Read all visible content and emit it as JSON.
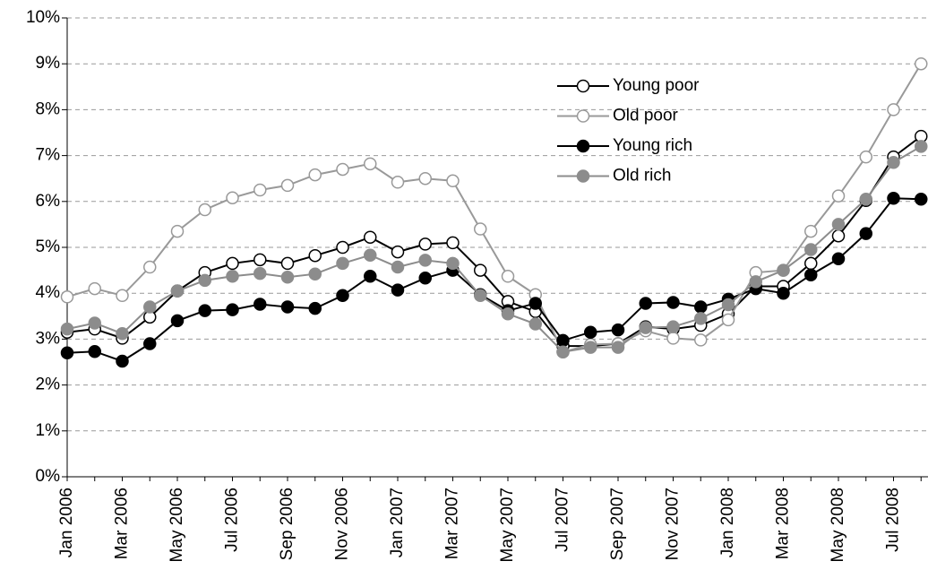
{
  "chart_data": {
    "type": "line",
    "categories": [
      "Jan 2006",
      null,
      "Mar 2006",
      null,
      "May 2006",
      null,
      "Jul 2006",
      null,
      "Sep 2006",
      null,
      "Nov 2006",
      null,
      "Jan 2007",
      null,
      "Mar 2007",
      null,
      "May 2007",
      null,
      "Jul 2007",
      null,
      "Sep 2007",
      null,
      "Nov 2007",
      null,
      "Jan 2008",
      null,
      "Mar 2008",
      null,
      "May 2008",
      null,
      "Jul 2008",
      null
    ],
    "series": [
      {
        "name": "Young poor",
        "color": "#000000",
        "marker_fill": "#ffffff",
        "values": [
          3.15,
          3.22,
          3.02,
          3.48,
          4.05,
          4.45,
          4.65,
          4.73,
          4.65,
          4.82,
          5.0,
          5.22,
          4.9,
          5.07,
          5.1,
          4.5,
          3.82,
          3.6,
          2.85,
          2.85,
          2.9,
          3.27,
          3.22,
          3.3,
          3.55,
          4.15,
          4.15,
          4.65,
          5.25,
          6.02,
          6.97,
          7.42
        ]
      },
      {
        "name": "Old poor",
        "color": "#999999",
        "marker_fill": "#ffffff",
        "values": [
          3.92,
          4.1,
          3.95,
          4.57,
          5.35,
          5.82,
          6.08,
          6.25,
          6.35,
          6.58,
          6.7,
          6.82,
          6.42,
          6.5,
          6.45,
          5.4,
          4.37,
          3.97,
          2.72,
          2.88,
          2.9,
          3.18,
          3.02,
          2.98,
          3.42,
          4.45,
          4.5,
          5.35,
          6.12,
          6.97,
          8.0,
          9.0
        ]
      },
      {
        "name": "Young rich",
        "color": "#000000",
        "marker_fill": "#000000",
        "values": [
          2.7,
          2.73,
          2.52,
          2.9,
          3.4,
          3.62,
          3.64,
          3.76,
          3.7,
          3.67,
          3.95,
          4.37,
          4.07,
          4.33,
          4.5,
          3.97,
          3.62,
          3.78,
          2.97,
          3.15,
          3.2,
          3.78,
          3.8,
          3.7,
          3.87,
          4.1,
          4.0,
          4.4,
          4.75,
          5.3,
          6.07,
          6.05
        ]
      },
      {
        "name": "Old rich",
        "color": "#8c8c8c",
        "marker_fill": "#8c8c8c",
        "values": [
          3.22,
          3.35,
          3.12,
          3.7,
          4.05,
          4.28,
          4.37,
          4.43,
          4.35,
          4.42,
          4.65,
          4.83,
          4.57,
          4.72,
          4.65,
          3.95,
          3.55,
          3.33,
          2.72,
          2.82,
          2.82,
          3.25,
          3.27,
          3.45,
          3.75,
          4.25,
          4.5,
          4.95,
          5.5,
          6.05,
          6.85,
          7.2
        ]
      }
    ],
    "ylim": [
      0,
      10
    ],
    "yticks": [
      {
        "value": 0,
        "label": "0%"
      },
      {
        "value": 1,
        "label": "1%"
      },
      {
        "value": 2,
        "label": "2%"
      },
      {
        "value": 3,
        "label": "3%"
      },
      {
        "value": 4,
        "label": "4%"
      },
      {
        "value": 5,
        "label": "5%"
      },
      {
        "value": 6,
        "label": "6%"
      },
      {
        "value": 7,
        "label": "7%"
      },
      {
        "value": 8,
        "label": "8%"
      },
      {
        "value": 9,
        "label": "9%"
      },
      {
        "value": 10,
        "label": "10%"
      }
    ],
    "grid": true,
    "legend": "upper right"
  }
}
